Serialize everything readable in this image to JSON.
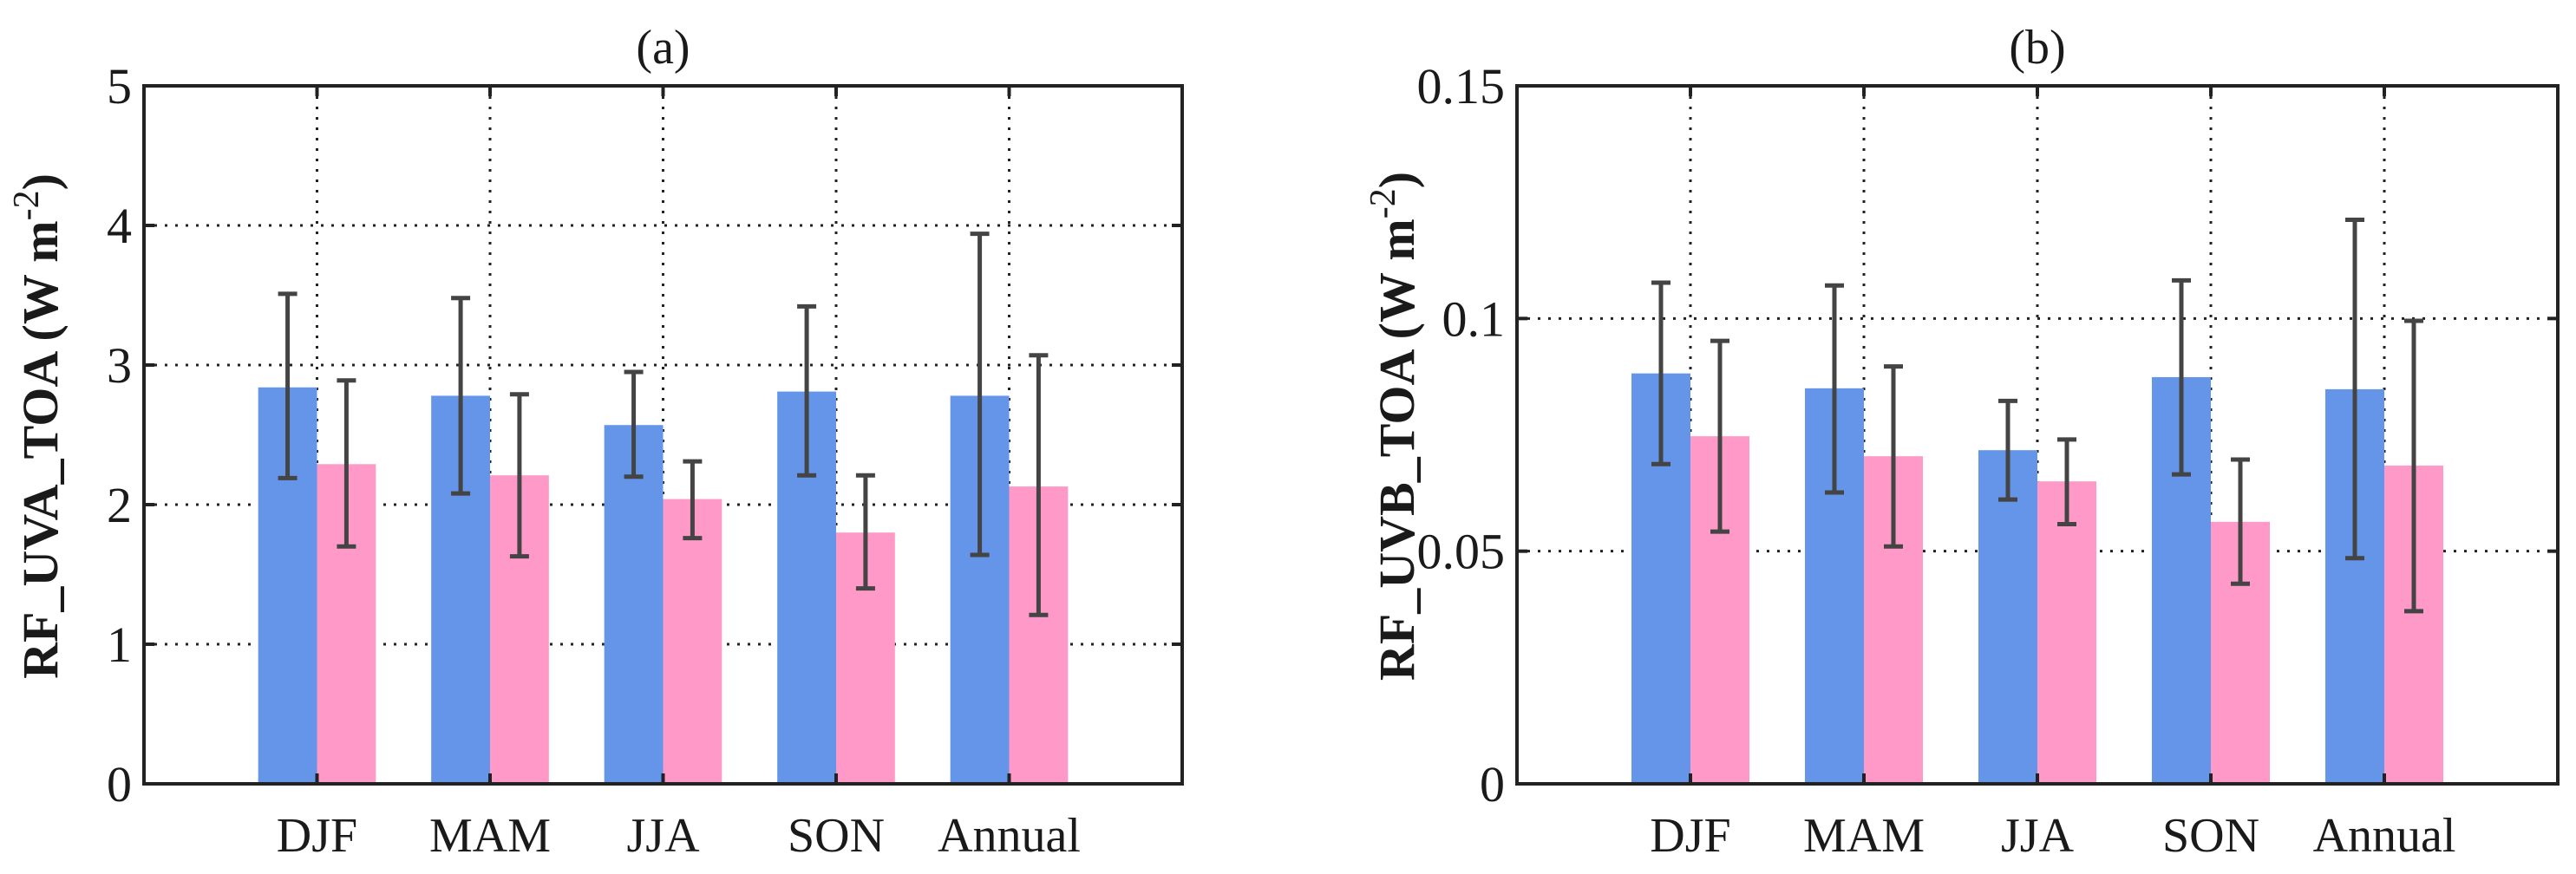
{
  "chart_data": [
    {
      "type": "bar",
      "title": "(a)",
      "xlabel": "",
      "ylabel": "RF_UVA_TOA (W m",
      "ylabel_sup": "-2",
      "ylabel_close": ")",
      "categories": [
        "DJF",
        "MAM",
        "JJA",
        "SON",
        "Annual"
      ],
      "ylim": [
        0,
        5
      ],
      "yticks": [
        0,
        1,
        2,
        3,
        4,
        5
      ],
      "ytick_labels": [
        "0",
        "1",
        "2",
        "3",
        "4",
        "5"
      ],
      "grid": true,
      "series": [
        {
          "name": "series1",
          "color": "#6495E8",
          "values": [
            2.84,
            2.78,
            2.57,
            2.81,
            2.78
          ],
          "err_low": [
            2.19,
            2.08,
            2.2,
            2.21,
            1.64
          ],
          "err_high": [
            3.51,
            3.48,
            2.95,
            3.42,
            3.94
          ]
        },
        {
          "name": "series2",
          "color": "#FF99C8",
          "values": [
            2.29,
            2.21,
            2.04,
            1.8,
            2.13
          ],
          "err_low": [
            1.7,
            1.63,
            1.76,
            1.4,
            1.21
          ],
          "err_high": [
            2.89,
            2.79,
            2.31,
            2.21,
            3.07
          ]
        }
      ]
    },
    {
      "type": "bar",
      "title": "(b)",
      "xlabel": "",
      "ylabel": "RF_UVB_TOA (W m",
      "ylabel_sup": "-2",
      "ylabel_close": ")",
      "categories": [
        "DJF",
        "MAM",
        "JJA",
        "SON",
        "Annual"
      ],
      "ylim": [
        0,
        0.15
      ],
      "yticks": [
        0,
        0.05,
        0.1,
        0.15
      ],
      "ytick_labels": [
        "0",
        "0.05",
        "0.1",
        "0.15"
      ],
      "grid": true,
      "series": [
        {
          "name": "series1",
          "color": "#6495E8",
          "values": [
            0.0882,
            0.085,
            0.0717,
            0.0874,
            0.0848
          ],
          "err_low": [
            0.0687,
            0.0626,
            0.0611,
            0.0665,
            0.0485
          ],
          "err_high": [
            0.1077,
            0.1071,
            0.0823,
            0.1082,
            0.1212
          ]
        },
        {
          "name": "series2",
          "color": "#FF99C8",
          "values": [
            0.0747,
            0.0704,
            0.065,
            0.0563,
            0.0684
          ],
          "err_low": [
            0.0542,
            0.051,
            0.0558,
            0.043,
            0.0371
          ],
          "err_high": [
            0.0952,
            0.0897,
            0.074,
            0.0697,
            0.0995
          ]
        }
      ]
    }
  ]
}
